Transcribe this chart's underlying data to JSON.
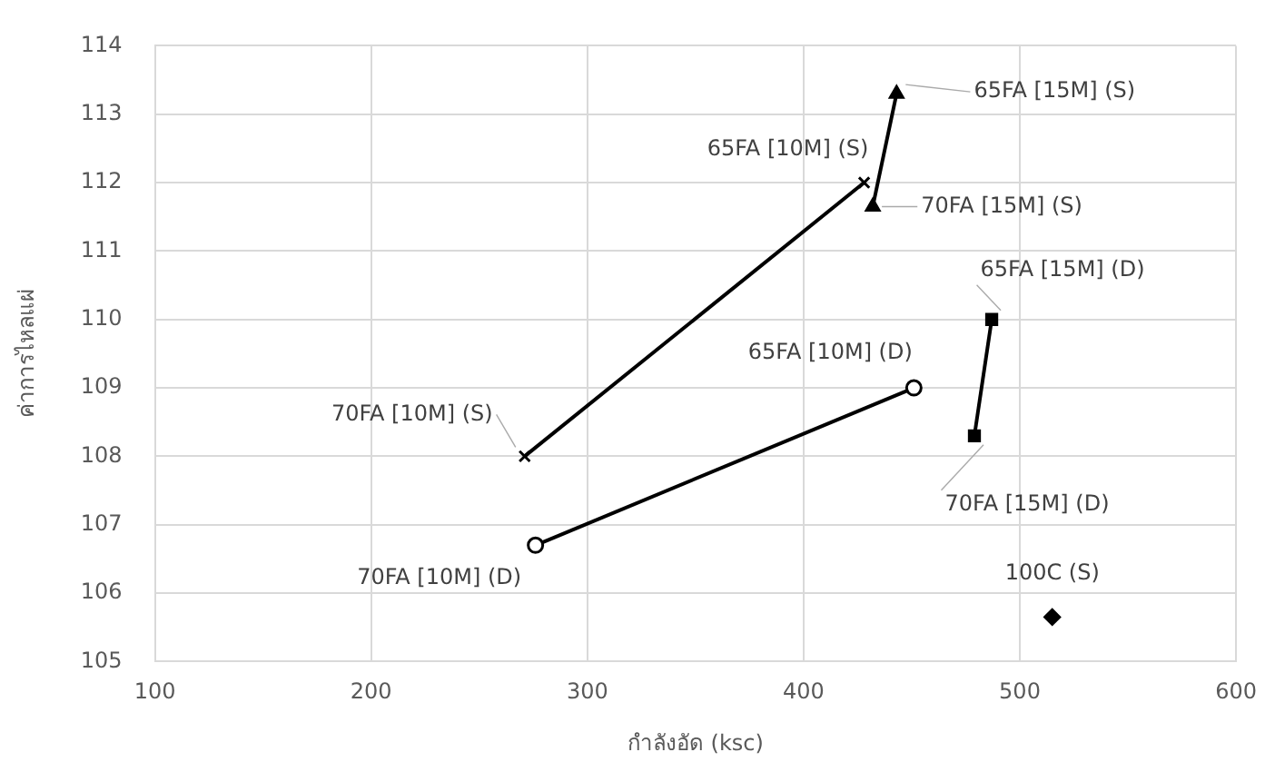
{
  "chart_data": {
    "type": "line",
    "xlabel": "กำลังอัด (ksc)",
    "ylabel": "ค่าการไหลแผ่",
    "xlim": [
      100,
      600
    ],
    "xticks": [
      100,
      200,
      300,
      400,
      500,
      600
    ],
    "ylim": [
      105,
      114
    ],
    "yticks": [
      105,
      106,
      107,
      108,
      109,
      110,
      111,
      112,
      113,
      114
    ],
    "grid": true,
    "legend": false,
    "line_style": "solid",
    "series": [
      {
        "color": "#000000",
        "marker": "cross",
        "x": [
          271,
          428
        ],
        "values": [
          108.0,
          112.0
        ]
      },
      {
        "color": "#000000",
        "marker": "circle",
        "x": [
          276,
          451
        ],
        "values": [
          106.7,
          109.0
        ]
      },
      {
        "color": "#000000",
        "marker": "triangle",
        "x": [
          432,
          443
        ],
        "values": [
          111.65,
          113.3
        ]
      },
      {
        "color": "#000000",
        "marker": "square",
        "x": [
          479,
          487
        ],
        "values": [
          108.3,
          110.0
        ]
      },
      {
        "color": "#000000",
        "marker": "diamond",
        "x": [
          515
        ],
        "values": [
          105.65
        ]
      }
    ],
    "annotations": [
      {
        "text": "70FA [10M] (S)",
        "x": 271,
        "y": 108.0
      },
      {
        "text": "65FA [10M] (S)",
        "x": 428,
        "y": 112.0
      },
      {
        "text": "65FA [15M] (S)",
        "x": 443,
        "y": 113.3
      },
      {
        "text": "70FA [15M] (S)",
        "x": 432,
        "y": 111.65
      },
      {
        "text": "65FA [15M] (D)",
        "x": 487,
        "y": 110.0
      },
      {
        "text": "70FA [15M] (D)",
        "x": 479,
        "y": 108.3
      },
      {
        "text": "65FA [10M] (D)",
        "x": 451,
        "y": 109.0
      },
      {
        "text": "70FA [10M] (D)",
        "x": 276,
        "y": 106.7
      },
      {
        "text": "100C (S)",
        "x": 515,
        "y": 105.65
      }
    ]
  }
}
